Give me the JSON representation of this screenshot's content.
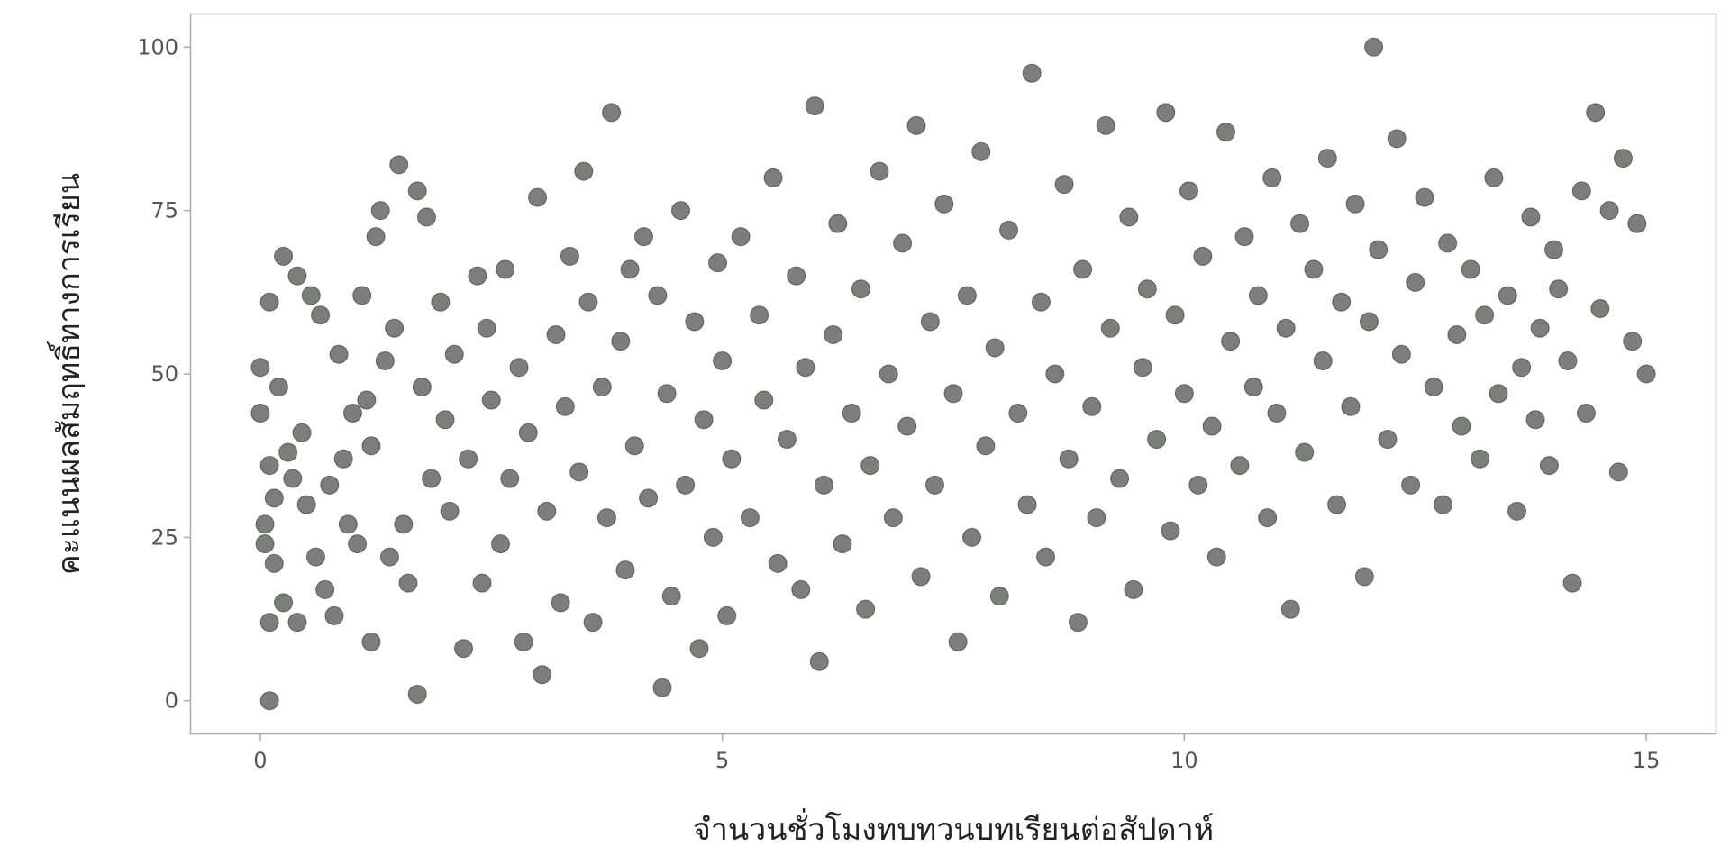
{
  "chart_data": {
    "type": "scatter",
    "title": "",
    "xlabel": "จำนวนชั่วโมงทบทวนบทเรียนต่อสัปดาห์",
    "ylabel": "คะแนนผลสัมฤทธิ์ทางการเรียน",
    "xlim": [
      -0.75,
      15.75
    ],
    "ylim": [
      -5,
      105
    ],
    "x_ticks": [
      0,
      5,
      10,
      15
    ],
    "x_tick_labels": [
      "0",
      "5",
      "10",
      "15"
    ],
    "y_ticks": [
      0,
      25,
      50,
      75,
      100
    ],
    "y_tick_labels": [
      "0",
      "25",
      "50",
      "75",
      "100"
    ],
    "grid": false,
    "legend": "none",
    "point_color": "#2b2e28",
    "series": [
      {
        "points": [
          [
            0.0,
            44
          ],
          [
            0.0,
            51
          ],
          [
            0.05,
            24
          ],
          [
            0.05,
            27
          ],
          [
            0.1,
            0
          ],
          [
            0.1,
            12
          ],
          [
            0.1,
            36
          ],
          [
            0.1,
            61
          ],
          [
            0.15,
            21
          ],
          [
            0.15,
            31
          ],
          [
            0.2,
            48
          ],
          [
            0.25,
            68
          ],
          [
            0.25,
            15
          ],
          [
            0.3,
            38
          ],
          [
            0.35,
            34
          ],
          [
            0.4,
            65
          ],
          [
            0.4,
            12
          ],
          [
            0.45,
            41
          ],
          [
            0.5,
            30
          ],
          [
            0.55,
            62
          ],
          [
            0.6,
            22
          ],
          [
            0.65,
            59
          ],
          [
            0.7,
            17
          ],
          [
            0.75,
            33
          ],
          [
            0.8,
            13
          ],
          [
            0.85,
            53
          ],
          [
            0.9,
            37
          ],
          [
            0.95,
            27
          ],
          [
            1.0,
            44
          ],
          [
            1.05,
            24
          ],
          [
            1.1,
            62
          ],
          [
            1.15,
            46
          ],
          [
            1.2,
            39
          ],
          [
            1.2,
            9
          ],
          [
            1.25,
            71
          ],
          [
            1.3,
            75
          ],
          [
            1.35,
            52
          ],
          [
            1.4,
            22
          ],
          [
            1.45,
            57
          ],
          [
            1.5,
            82
          ],
          [
            1.55,
            27
          ],
          [
            1.6,
            18
          ],
          [
            1.7,
            1
          ],
          [
            1.7,
            78
          ],
          [
            1.75,
            48
          ],
          [
            1.8,
            74
          ],
          [
            1.85,
            34
          ],
          [
            1.95,
            61
          ],
          [
            2.0,
            43
          ],
          [
            2.05,
            29
          ],
          [
            2.1,
            53
          ],
          [
            2.2,
            8
          ],
          [
            2.25,
            37
          ],
          [
            2.35,
            65
          ],
          [
            2.4,
            18
          ],
          [
            2.45,
            57
          ],
          [
            2.5,
            46
          ],
          [
            2.6,
            24
          ],
          [
            2.65,
            66
          ],
          [
            2.7,
            34
          ],
          [
            2.8,
            51
          ],
          [
            2.85,
            9
          ],
          [
            2.9,
            41
          ],
          [
            3.0,
            77
          ],
          [
            3.05,
            4
          ],
          [
            3.1,
            29
          ],
          [
            3.2,
            56
          ],
          [
            3.25,
            15
          ],
          [
            3.3,
            45
          ],
          [
            3.35,
            68
          ],
          [
            3.45,
            35
          ],
          [
            3.5,
            81
          ],
          [
            3.55,
            61
          ],
          [
            3.6,
            12
          ],
          [
            3.7,
            48
          ],
          [
            3.75,
            28
          ],
          [
            3.8,
            90
          ],
          [
            3.9,
            55
          ],
          [
            3.95,
            20
          ],
          [
            4.0,
            66
          ],
          [
            4.05,
            39
          ],
          [
            4.15,
            71
          ],
          [
            4.2,
            31
          ],
          [
            4.3,
            62
          ],
          [
            4.35,
            2
          ],
          [
            4.4,
            47
          ],
          [
            4.45,
            16
          ],
          [
            4.55,
            75
          ],
          [
            4.6,
            33
          ],
          [
            4.7,
            58
          ],
          [
            4.75,
            8
          ],
          [
            4.8,
            43
          ],
          [
            4.9,
            25
          ],
          [
            4.95,
            67
          ],
          [
            5.0,
            52
          ],
          [
            5.05,
            13
          ],
          [
            5.1,
            37
          ],
          [
            5.2,
            71
          ],
          [
            5.3,
            28
          ],
          [
            5.4,
            59
          ],
          [
            5.45,
            46
          ],
          [
            5.55,
            80
          ],
          [
            5.6,
            21
          ],
          [
            5.7,
            40
          ],
          [
            5.8,
            65
          ],
          [
            5.85,
            17
          ],
          [
            5.9,
            51
          ],
          [
            6.0,
            91
          ],
          [
            6.05,
            6
          ],
          [
            6.1,
            33
          ],
          [
            6.2,
            56
          ],
          [
            6.25,
            73
          ],
          [
            6.3,
            24
          ],
          [
            6.4,
            44
          ],
          [
            6.5,
            63
          ],
          [
            6.55,
            14
          ],
          [
            6.6,
            36
          ],
          [
            6.7,
            81
          ],
          [
            6.8,
            50
          ],
          [
            6.85,
            28
          ],
          [
            6.95,
            70
          ],
          [
            7.0,
            42
          ],
          [
            7.1,
            88
          ],
          [
            7.15,
            19
          ],
          [
            7.25,
            58
          ],
          [
            7.3,
            33
          ],
          [
            7.4,
            76
          ],
          [
            7.5,
            47
          ],
          [
            7.55,
            9
          ],
          [
            7.65,
            62
          ],
          [
            7.7,
            25
          ],
          [
            7.8,
            84
          ],
          [
            7.85,
            39
          ],
          [
            7.95,
            54
          ],
          [
            8.0,
            16
          ],
          [
            8.1,
            72
          ],
          [
            8.2,
            44
          ],
          [
            8.3,
            30
          ],
          [
            8.35,
            96
          ],
          [
            8.45,
            61
          ],
          [
            8.5,
            22
          ],
          [
            8.6,
            50
          ],
          [
            8.7,
            79
          ],
          [
            8.75,
            37
          ],
          [
            8.85,
            12
          ],
          [
            8.9,
            66
          ],
          [
            9.0,
            45
          ],
          [
            9.05,
            28
          ],
          [
            9.15,
            88
          ],
          [
            9.2,
            57
          ],
          [
            9.3,
            34
          ],
          [
            9.4,
            74
          ],
          [
            9.45,
            17
          ],
          [
            9.55,
            51
          ],
          [
            9.6,
            63
          ],
          [
            9.7,
            40
          ],
          [
            9.8,
            90
          ],
          [
            9.85,
            26
          ],
          [
            9.9,
            59
          ],
          [
            10.0,
            47
          ],
          [
            10.05,
            78
          ],
          [
            10.15,
            33
          ],
          [
            10.2,
            68
          ],
          [
            10.3,
            42
          ],
          [
            10.35,
            22
          ],
          [
            10.45,
            87
          ],
          [
            10.5,
            55
          ],
          [
            10.6,
            36
          ],
          [
            10.65,
            71
          ],
          [
            10.75,
            48
          ],
          [
            10.8,
            62
          ],
          [
            10.9,
            28
          ],
          [
            10.95,
            80
          ],
          [
            11.0,
            44
          ],
          [
            11.1,
            57
          ],
          [
            11.15,
            14
          ],
          [
            11.25,
            73
          ],
          [
            11.3,
            38
          ],
          [
            11.4,
            66
          ],
          [
            11.5,
            52
          ],
          [
            11.55,
            83
          ],
          [
            11.65,
            30
          ],
          [
            11.7,
            61
          ],
          [
            11.8,
            45
          ],
          [
            11.85,
            76
          ],
          [
            11.95,
            19
          ],
          [
            12.0,
            58
          ],
          [
            12.05,
            100
          ],
          [
            12.1,
            69
          ],
          [
            12.2,
            40
          ],
          [
            12.3,
            86
          ],
          [
            12.35,
            53
          ],
          [
            12.45,
            33
          ],
          [
            12.5,
            64
          ],
          [
            12.6,
            77
          ],
          [
            12.7,
            48
          ],
          [
            12.8,
            30
          ],
          [
            12.85,
            70
          ],
          [
            12.95,
            56
          ],
          [
            13.0,
            42
          ],
          [
            13.1,
            66
          ],
          [
            13.2,
            37
          ],
          [
            13.25,
            59
          ],
          [
            13.35,
            80
          ],
          [
            13.4,
            47
          ],
          [
            13.5,
            62
          ],
          [
            13.6,
            29
          ],
          [
            13.65,
            51
          ],
          [
            13.75,
            74
          ],
          [
            13.8,
            43
          ],
          [
            13.85,
            57
          ],
          [
            13.95,
            36
          ],
          [
            14.0,
            69
          ],
          [
            14.05,
            63
          ],
          [
            14.15,
            52
          ],
          [
            14.2,
            18
          ],
          [
            14.3,
            78
          ],
          [
            14.35,
            44
          ],
          [
            14.45,
            90
          ],
          [
            14.5,
            60
          ],
          [
            14.6,
            75
          ],
          [
            14.7,
            35
          ],
          [
            14.75,
            83
          ],
          [
            14.85,
            55
          ],
          [
            14.9,
            73
          ],
          [
            15.0,
            50
          ]
        ]
      }
    ]
  }
}
